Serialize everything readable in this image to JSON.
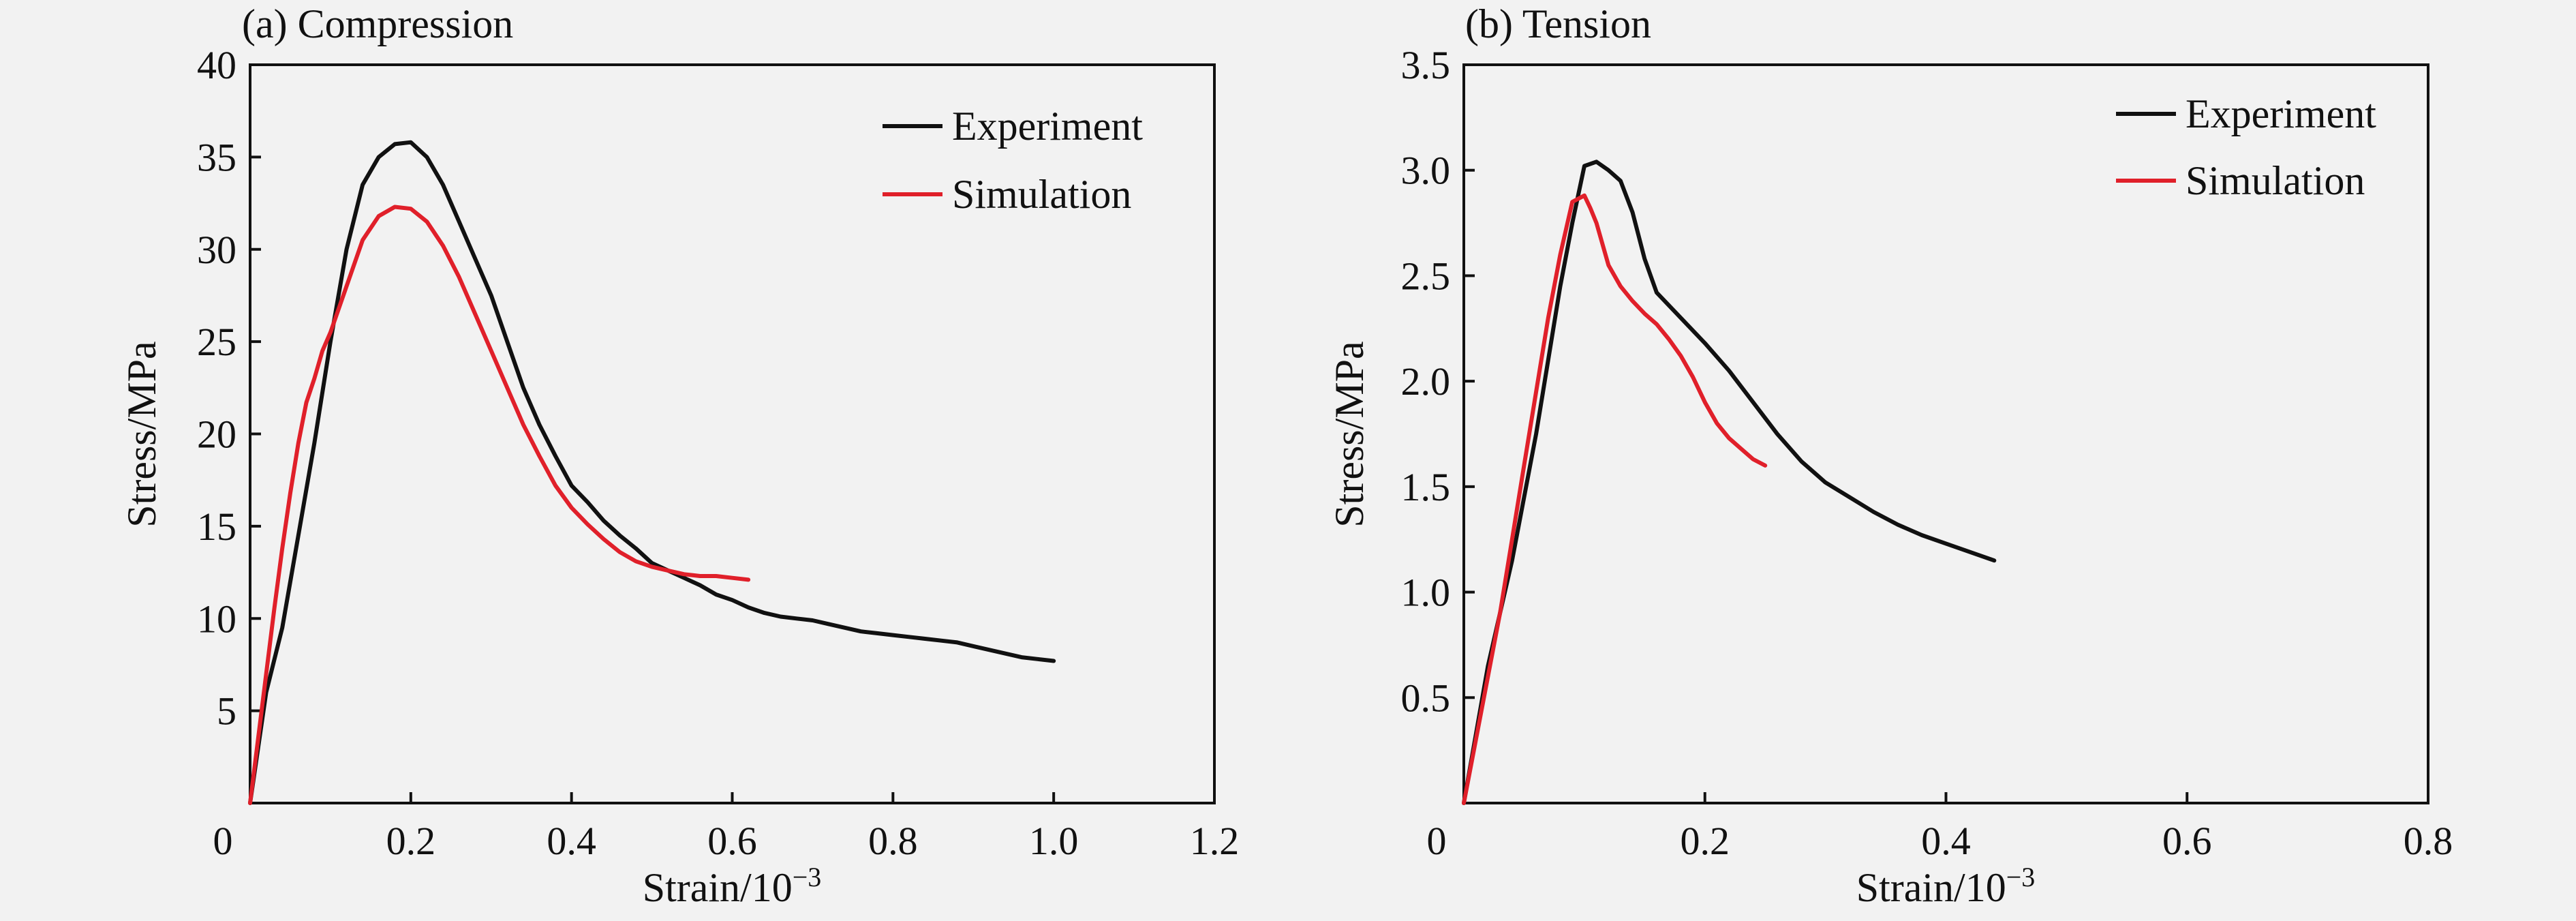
{
  "chart_data": [
    {
      "type": "line",
      "title": "(a) Compression",
      "xlabel": "Strain/10",
      "xlabel_sup": "−3",
      "ylabel": "Stress/MPa",
      "xlim": [
        0,
        1.2
      ],
      "ylim": [
        0,
        40
      ],
      "xticks": [
        0,
        0.2,
        0.4,
        0.6,
        0.8,
        1.0,
        1.2
      ],
      "xtick_labels": [
        "0",
        "0.2",
        "0.4",
        "0.6",
        "0.8",
        "1.0",
        "1.2"
      ],
      "yticks": [
        5,
        10,
        15,
        20,
        25,
        30,
        35,
        40
      ],
      "ytick_labels": [
        "5",
        "10",
        "15",
        "20",
        "25",
        "30",
        "35",
        "40"
      ],
      "grid": false,
      "legend": "top-right",
      "series": [
        {
          "name": "Experiment",
          "color": "#111111",
          "x": [
            0,
            0.02,
            0.04,
            0.06,
            0.08,
            0.1,
            0.12,
            0.14,
            0.16,
            0.18,
            0.2,
            0.22,
            0.24,
            0.26,
            0.28,
            0.3,
            0.32,
            0.34,
            0.36,
            0.38,
            0.4,
            0.42,
            0.44,
            0.46,
            0.48,
            0.5,
            0.52,
            0.54,
            0.56,
            0.58,
            0.6,
            0.62,
            0.64,
            0.66,
            0.68,
            0.7,
            0.72,
            0.74,
            0.76,
            0.78,
            0.8,
            0.82,
            0.84,
            0.86,
            0.88,
            0.9,
            0.92,
            0.94,
            0.96,
            0.98,
            1.0
          ],
          "y": [
            0,
            6.0,
            9.5,
            14.5,
            19.5,
            25.0,
            30.0,
            33.5,
            35.0,
            35.7,
            35.8,
            35.0,
            33.5,
            31.5,
            29.5,
            27.5,
            25.0,
            22.5,
            20.5,
            18.8,
            17.2,
            16.3,
            15.3,
            14.5,
            13.8,
            13.0,
            12.6,
            12.2,
            11.8,
            11.3,
            11.0,
            10.6,
            10.3,
            10.1,
            10.0,
            9.9,
            9.7,
            9.5,
            9.3,
            9.2,
            9.1,
            9.0,
            8.9,
            8.8,
            8.7,
            8.5,
            8.3,
            8.1,
            7.9,
            7.8,
            7.7
          ]
        },
        {
          "name": "Simulation",
          "color": "#e0202a",
          "x": [
            0,
            0.01,
            0.02,
            0.03,
            0.04,
            0.05,
            0.06,
            0.07,
            0.08,
            0.09,
            0.1,
            0.12,
            0.14,
            0.16,
            0.18,
            0.2,
            0.22,
            0.24,
            0.26,
            0.28,
            0.3,
            0.32,
            0.34,
            0.36,
            0.38,
            0.4,
            0.42,
            0.44,
            0.46,
            0.48,
            0.5,
            0.52,
            0.54,
            0.56,
            0.58,
            0.6,
            0.62
          ],
          "y": [
            0,
            3.5,
            7.0,
            10.5,
            13.8,
            16.8,
            19.5,
            21.7,
            23.0,
            24.5,
            25.5,
            28.0,
            30.5,
            31.8,
            32.3,
            32.2,
            31.5,
            30.2,
            28.5,
            26.5,
            24.5,
            22.5,
            20.5,
            18.8,
            17.2,
            16.0,
            15.1,
            14.3,
            13.6,
            13.1,
            12.8,
            12.6,
            12.4,
            12.3,
            12.3,
            12.2,
            12.1
          ]
        }
      ]
    },
    {
      "type": "line",
      "title": "(b) Tension",
      "xlabel": "Strain/10",
      "xlabel_sup": "−3",
      "ylabel": "Stress/MPa",
      "xlim": [
        0,
        0.8
      ],
      "ylim": [
        0,
        3.5
      ],
      "xticks": [
        0,
        0.2,
        0.4,
        0.6,
        0.8
      ],
      "xtick_labels": [
        "0",
        "0.2",
        "0.4",
        "0.6",
        "0.8"
      ],
      "yticks": [
        0.5,
        1.0,
        1.5,
        2.0,
        2.5,
        3.0,
        3.5
      ],
      "ytick_labels": [
        "0.5",
        "1.0",
        "1.5",
        "2.0",
        "2.5",
        "3.0",
        "3.5"
      ],
      "grid": false,
      "legend": "top-right",
      "series": [
        {
          "name": "Experiment",
          "color": "#111111",
          "x": [
            0,
            0.02,
            0.04,
            0.06,
            0.08,
            0.09,
            0.1,
            0.11,
            0.12,
            0.13,
            0.14,
            0.15,
            0.16,
            0.18,
            0.2,
            0.22,
            0.24,
            0.26,
            0.28,
            0.3,
            0.32,
            0.34,
            0.36,
            0.38,
            0.4,
            0.42,
            0.44
          ],
          "y": [
            0,
            0.65,
            1.15,
            1.75,
            2.45,
            2.75,
            3.02,
            3.04,
            3.0,
            2.95,
            2.8,
            2.58,
            2.42,
            2.3,
            2.18,
            2.05,
            1.9,
            1.75,
            1.62,
            1.52,
            1.45,
            1.38,
            1.32,
            1.27,
            1.23,
            1.19,
            1.15
          ]
        },
        {
          "name": "Simulation",
          "color": "#e0202a",
          "x": [
            0,
            0.01,
            0.02,
            0.03,
            0.04,
            0.05,
            0.06,
            0.07,
            0.08,
            0.09,
            0.1,
            0.105,
            0.11,
            0.12,
            0.13,
            0.14,
            0.15,
            0.16,
            0.17,
            0.18,
            0.19,
            0.2,
            0.21,
            0.22,
            0.23,
            0.24,
            0.25
          ],
          "y": [
            0,
            0.3,
            0.6,
            0.9,
            1.25,
            1.6,
            1.95,
            2.3,
            2.6,
            2.85,
            2.88,
            2.82,
            2.75,
            2.55,
            2.45,
            2.38,
            2.32,
            2.27,
            2.2,
            2.12,
            2.02,
            1.9,
            1.8,
            1.73,
            1.68,
            1.63,
            1.6
          ]
        }
      ]
    }
  ]
}
